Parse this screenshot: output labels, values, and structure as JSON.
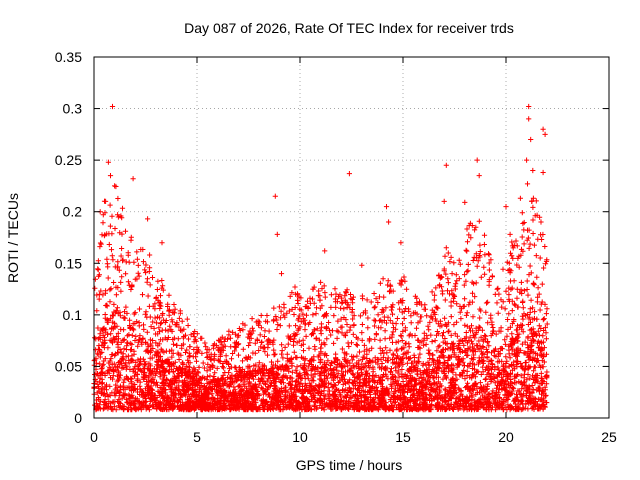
{
  "chart_data": {
    "type": "scatter",
    "title": "Day 087 of 2026, Rate Of TEC Index for receiver trds",
    "xlabel": "GPS time / hours",
    "ylabel": "ROTI / TECUs",
    "xlim": [
      0,
      25
    ],
    "ylim": [
      0,
      0.35
    ],
    "x_ticks": [
      0,
      5,
      10,
      15,
      20,
      25
    ],
    "x_tick_labels": [
      "0",
      "5",
      "10",
      "15",
      "20",
      "25"
    ],
    "y_ticks": [
      0,
      0.05,
      0.1,
      0.15,
      0.2,
      0.25,
      0.3,
      0.35
    ],
    "y_tick_labels": [
      "0",
      "0.05",
      "0.1",
      "0.15",
      "0.2",
      "0.25",
      "0.3",
      "0.35"
    ],
    "grid": true,
    "marker": "plus",
    "series_color": "#ff0000",
    "data_x_range": [
      0,
      22
    ],
    "envelope": [
      {
        "x": 0.0,
        "y": 0.12
      },
      {
        "x": 0.5,
        "y": 0.2
      },
      {
        "x": 1.0,
        "y": 0.22
      },
      {
        "x": 1.5,
        "y": 0.19
      },
      {
        "x": 2.0,
        "y": 0.17
      },
      {
        "x": 2.5,
        "y": 0.15
      },
      {
        "x": 3.0,
        "y": 0.13
      },
      {
        "x": 3.5,
        "y": 0.12
      },
      {
        "x": 4.0,
        "y": 0.1
      },
      {
        "x": 4.5,
        "y": 0.09
      },
      {
        "x": 5.0,
        "y": 0.075
      },
      {
        "x": 5.5,
        "y": 0.06
      },
      {
        "x": 6.0,
        "y": 0.065
      },
      {
        "x": 6.5,
        "y": 0.075
      },
      {
        "x": 7.0,
        "y": 0.08
      },
      {
        "x": 7.5,
        "y": 0.085
      },
      {
        "x": 8.0,
        "y": 0.09
      },
      {
        "x": 8.5,
        "y": 0.095
      },
      {
        "x": 9.0,
        "y": 0.11
      },
      {
        "x": 9.5,
        "y": 0.12
      },
      {
        "x": 10.0,
        "y": 0.115
      },
      {
        "x": 10.5,
        "y": 0.11
      },
      {
        "x": 11.0,
        "y": 0.13
      },
      {
        "x": 11.5,
        "y": 0.12
      },
      {
        "x": 12.0,
        "y": 0.11
      },
      {
        "x": 12.5,
        "y": 0.12
      },
      {
        "x": 13.0,
        "y": 0.115
      },
      {
        "x": 13.5,
        "y": 0.11
      },
      {
        "x": 14.0,
        "y": 0.13
      },
      {
        "x": 14.5,
        "y": 0.12
      },
      {
        "x": 15.0,
        "y": 0.13
      },
      {
        "x": 15.5,
        "y": 0.11
      },
      {
        "x": 16.0,
        "y": 0.1
      },
      {
        "x": 16.5,
        "y": 0.115
      },
      {
        "x": 17.0,
        "y": 0.16
      },
      {
        "x": 17.5,
        "y": 0.14
      },
      {
        "x": 18.0,
        "y": 0.17
      },
      {
        "x": 18.5,
        "y": 0.19
      },
      {
        "x": 19.0,
        "y": 0.17
      },
      {
        "x": 19.5,
        "y": 0.13
      },
      {
        "x": 20.0,
        "y": 0.15
      },
      {
        "x": 20.5,
        "y": 0.17
      },
      {
        "x": 21.0,
        "y": 0.22
      },
      {
        "x": 21.5,
        "y": 0.2
      },
      {
        "x": 22.0,
        "y": 0.15
      }
    ],
    "outliers": [
      {
        "x": 0.9,
        "y": 0.302
      },
      {
        "x": 0.7,
        "y": 0.248
      },
      {
        "x": 0.8,
        "y": 0.235
      },
      {
        "x": 1.0,
        "y": 0.225
      },
      {
        "x": 0.3,
        "y": 0.2
      },
      {
        "x": 1.9,
        "y": 0.232
      },
      {
        "x": 2.6,
        "y": 0.193
      },
      {
        "x": 2.7,
        "y": 0.158
      },
      {
        "x": 3.3,
        "y": 0.17
      },
      {
        "x": 4.2,
        "y": 0.085
      },
      {
        "x": 8.8,
        "y": 0.215
      },
      {
        "x": 8.9,
        "y": 0.178
      },
      {
        "x": 9.1,
        "y": 0.14
      },
      {
        "x": 11.2,
        "y": 0.162
      },
      {
        "x": 12.4,
        "y": 0.237
      },
      {
        "x": 13.0,
        "y": 0.148
      },
      {
        "x": 14.2,
        "y": 0.205
      },
      {
        "x": 14.3,
        "y": 0.19
      },
      {
        "x": 14.9,
        "y": 0.17
      },
      {
        "x": 15.6,
        "y": 0.118
      },
      {
        "x": 17.1,
        "y": 0.245
      },
      {
        "x": 17.0,
        "y": 0.21
      },
      {
        "x": 17.1,
        "y": 0.165
      },
      {
        "x": 18.0,
        "y": 0.209
      },
      {
        "x": 18.6,
        "y": 0.25
      },
      {
        "x": 18.7,
        "y": 0.235
      },
      {
        "x": 20.2,
        "y": 0.178
      },
      {
        "x": 20.0,
        "y": 0.205
      },
      {
        "x": 20.7,
        "y": 0.213
      },
      {
        "x": 21.1,
        "y": 0.302
      },
      {
        "x": 21.1,
        "y": 0.29
      },
      {
        "x": 21.2,
        "y": 0.27
      },
      {
        "x": 21.0,
        "y": 0.25
      },
      {
        "x": 21.3,
        "y": 0.24
      },
      {
        "x": 21.8,
        "y": 0.28
      },
      {
        "x": 21.9,
        "y": 0.275
      },
      {
        "x": 21.8,
        "y": 0.238
      },
      {
        "x": 21.7,
        "y": 0.19
      }
    ]
  }
}
